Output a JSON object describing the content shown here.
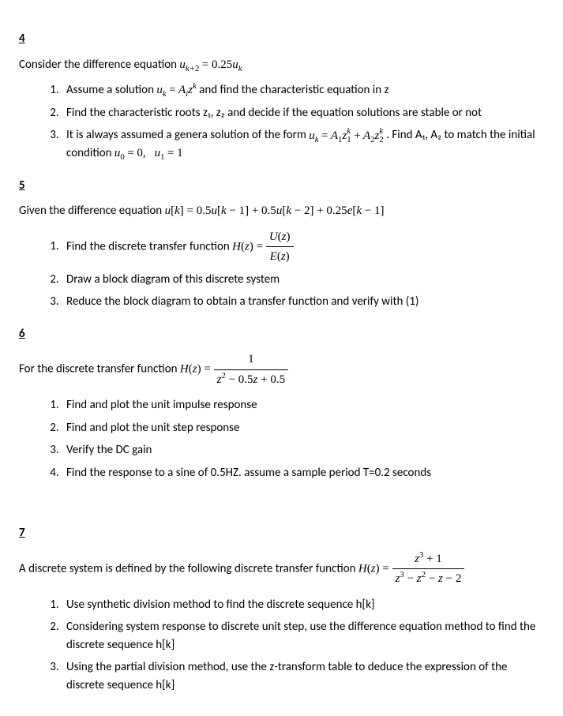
{
  "p4": {
    "heading": "4",
    "intro_pre": "Consider the difference equation ",
    "intro_eq": "u_{k+2} = 0.25u_k",
    "items": [
      {
        "pre": "Assume a solution ",
        "eq1": "u_k = A_i z^k",
        "post": " and find the characteristic equation in z"
      },
      {
        "text": "Find the characteristic roots z₁, z₂ and decide if the equation solutions are stable or not"
      },
      {
        "pre": "It is always assumed a genera solution of the form ",
        "eq1": "u_k = A_1 z_1^k + A_2 z_2^k",
        "mid": " . Find A₁, A₂ to match the initial condition ",
        "eq2": "u_0 = 0,  u_1 = 1"
      }
    ]
  },
  "p5": {
    "heading": "5",
    "intro_pre": "Given the difference equation ",
    "intro_eq": "u[k] = 0.5u[k−1] + 0.5u[k−2] + 0.25e[k−1]",
    "items": [
      {
        "pre": "Find the discrete transfer function ",
        "eq_lhs": "H(z) = ",
        "frac_num": "U(z)",
        "frac_den": "E(z)"
      },
      {
        "text": "Draw a block diagram of this discrete system"
      },
      {
        "text": "Reduce the block diagram to obtain a transfer function and verify with (1)"
      }
    ]
  },
  "p6": {
    "heading": "6",
    "intro_pre": "For the discrete transfer function ",
    "eq_lhs": "H(z) = ",
    "frac_num": "1",
    "frac_den": "z² − 0.5z + 0.5",
    "items": [
      {
        "text": "Find and plot the unit impulse response"
      },
      {
        "text": "Find and plot the unit step response"
      },
      {
        "text": "Verify the DC gain"
      },
      {
        "text": "Find the response to a sine of 0.5HZ. assume a sample period T=0.2 seconds"
      }
    ]
  },
  "p7": {
    "heading": "7",
    "intro_pre": "A discrete system is defined by the following discrete transfer function ",
    "eq_lhs": "H(z) = ",
    "frac_num": "z³ + 1",
    "frac_den": "z³ − z² − z − 2",
    "items": [
      {
        "text": "Use synthetic division method to find the discrete sequence h[k]"
      },
      {
        "text": "Considering system response to discrete unit step, use the difference equation method to find the discrete sequence h[k]"
      },
      {
        "text": "Using the partial division method, use the z-transform table to deduce the expression of the discrete sequence h[k]"
      }
    ]
  }
}
